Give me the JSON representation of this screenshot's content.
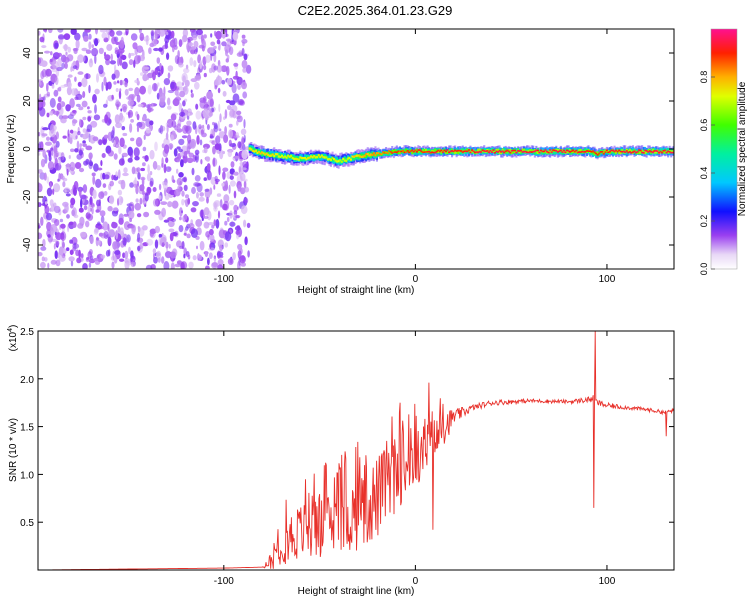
{
  "title": "C2E2.2025.364.01.23.G29",
  "colorbar": {
    "label": "Normalized spectral amplitude",
    "ticks": [
      "0.0",
      "0.2",
      "0.4",
      "0.6",
      "0.8"
    ],
    "tick_values": [
      0.0,
      0.2,
      0.4,
      0.6,
      0.8
    ]
  },
  "chart_data": [
    {
      "type": "heatmap",
      "xlabel": "Height of straight line (km)",
      "ylabel": "Frequency (Hz)",
      "xlim": [
        -197,
        135
      ],
      "ylim": [
        -50,
        50
      ],
      "x_ticks": [
        -100,
        0,
        100
      ],
      "x_tick_labels": [
        "-100",
        "0",
        "100"
      ],
      "y_ticks": [
        -40,
        -20,
        0,
        20,
        40
      ],
      "y_tick_labels": [
        "-40",
        "-20",
        "0",
        "20",
        "40"
      ],
      "noise_region": {
        "x_from": -197,
        "x_to": -87,
        "amplitude": 0.15
      },
      "signal_region": {
        "x_from": -87,
        "x_to": 135
      },
      "signal_track": {
        "x": [
          -87,
          -80,
          -70,
          -60,
          -50,
          -40,
          -35,
          -30,
          -20,
          -10,
          0,
          10,
          20,
          40,
          60,
          80,
          90,
          95,
          100,
          110,
          120,
          135
        ],
        "frequency": [
          0,
          -2,
          -3,
          -4,
          -3,
          -5,
          -4,
          -3,
          -2,
          -1,
          -1,
          -1,
          -1,
          -1,
          -1,
          -1,
          -1,
          -2,
          -1,
          -1,
          -1,
          -1
        ],
        "amplitude": [
          0.55,
          0.6,
          0.5,
          0.5,
          0.5,
          0.45,
          0.5,
          0.6,
          0.75,
          0.85,
          0.9,
          0.95,
          0.95,
          1.0,
          1.0,
          1.0,
          0.95,
          0.9,
          0.95,
          1.0,
          1.0,
          1.0
        ]
      }
    },
    {
      "type": "line",
      "xlabel": "Height of straight line (km)",
      "ylabel": "SNR (10 * v/v)",
      "scale_label": "(x10",
      "scale_exponent": "4",
      "xlim": [
        -197,
        135
      ],
      "ylim": [
        0,
        2.5
      ],
      "x_ticks": [
        -100,
        0,
        100
      ],
      "x_tick_labels": [
        "-100",
        "0",
        "100"
      ],
      "y_ticks": [
        0.5,
        1.0,
        1.5,
        2.0,
        2.5
      ],
      "y_tick_labels": [
        "0.5",
        "1.0",
        "1.5",
        "2.0",
        "2.5"
      ],
      "series": [
        {
          "name": "SNR",
          "color": "#e8302a",
          "x": [
            -197,
            -150,
            -100,
            -80,
            -75,
            -70,
            -60,
            -50,
            -40,
            -30,
            -20,
            -15,
            -10,
            -5,
            0,
            5,
            10,
            15,
            20,
            30,
            40,
            60,
            80,
            90,
            93,
            95,
            100,
            110,
            120,
            130,
            135
          ],
          "y": [
            0.0,
            0.01,
            0.02,
            0.03,
            0.1,
            0.3,
            0.4,
            0.45,
            0.5,
            0.6,
            0.75,
            0.9,
            1.0,
            1.1,
            1.15,
            1.25,
            1.35,
            1.5,
            1.6,
            1.7,
            1.75,
            1.77,
            1.76,
            1.78,
            1.8,
            1.75,
            1.72,
            1.7,
            1.68,
            1.65,
            1.67
          ],
          "jitter": [
            0.0,
            0.0,
            0.0,
            0.0,
            0.1,
            0.25,
            0.3,
            0.32,
            0.35,
            0.4,
            0.45,
            0.4,
            0.4,
            0.35,
            0.3,
            0.3,
            0.25,
            0.2,
            0.08,
            0.03,
            0.03,
            0.02,
            0.02,
            0.03,
            0.03,
            0.03,
            0.03,
            0.02,
            0.02,
            0.02,
            0.02
          ],
          "spikes": [
            {
              "x": -15,
              "y": 1.35
            },
            {
              "x": 7,
              "y": 1.96
            },
            {
              "x": 9,
              "y": 0.42
            },
            {
              "x": 93,
              "y": 0.65
            },
            {
              "x": 94,
              "y": 2.5
            },
            {
              "x": 131,
              "y": 1.4
            }
          ]
        }
      ]
    }
  ]
}
